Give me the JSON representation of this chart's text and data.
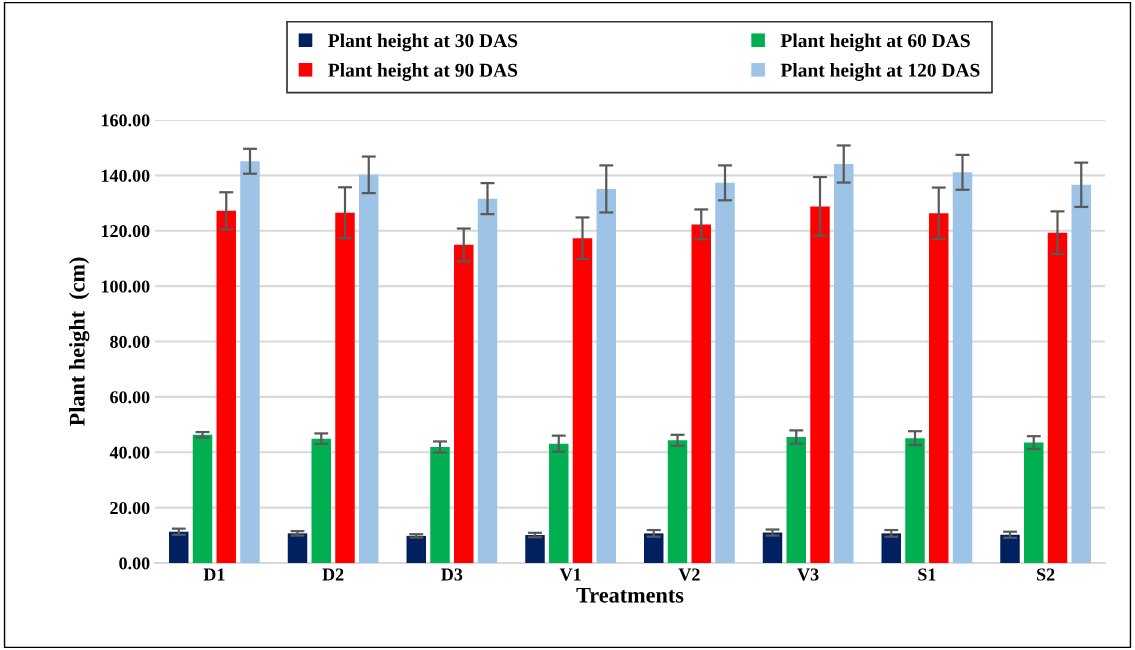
{
  "chart_data": {
    "type": "bar",
    "xlabel": "Treatments",
    "ylabel": "Plant height  (cm)",
    "categories": [
      "D1",
      "D2",
      "D3",
      "V1",
      "V2",
      "V3",
      "S1",
      "S2"
    ],
    "series": [
      {
        "name": "Plant height at 30 DAS",
        "color": "#002060",
        "values": [
          11.3,
          10.7,
          9.8,
          10.1,
          10.7,
          11.0,
          10.7,
          10.2
        ],
        "errors": [
          1.1,
          0.8,
          0.6,
          0.8,
          1.2,
          1.1,
          1.2,
          1.1
        ]
      },
      {
        "name": "Plant height at 60 DAS",
        "color": "#00b050",
        "values": [
          46.3,
          44.9,
          41.9,
          43.1,
          44.3,
          45.5,
          45.1,
          43.5
        ],
        "errors": [
          1.0,
          1.9,
          2.0,
          2.9,
          2.0,
          2.4,
          2.5,
          2.3
        ]
      },
      {
        "name": "Plant height at 90 DAS",
        "color": "#ff0000",
        "values": [
          127.2,
          126.5,
          114.9,
          117.3,
          122.3,
          128.8,
          126.3,
          119.3
        ],
        "errors": [
          6.7,
          9.2,
          5.9,
          7.5,
          5.4,
          10.6,
          9.3,
          7.7
        ]
      },
      {
        "name": "Plant height at 120 DAS",
        "color": "#9dc3e6",
        "values": [
          145.1,
          140.2,
          131.6,
          135.1,
          137.3,
          144.1,
          141.1,
          136.6
        ],
        "errors": [
          4.5,
          6.6,
          5.6,
          8.5,
          6.3,
          6.7,
          6.3,
          8.0
        ]
      }
    ],
    "ylim": [
      0,
      160
    ],
    "yticks": [
      {
        "value": 0,
        "label": "0.00"
      },
      {
        "value": 20,
        "label": "20.00"
      },
      {
        "value": 40,
        "label": "40.00"
      },
      {
        "value": 60,
        "label": "60.00"
      },
      {
        "value": 80,
        "label": "80.00"
      },
      {
        "value": 100,
        "label": "100.00"
      },
      {
        "value": 120,
        "label": "120.00"
      },
      {
        "value": 140,
        "label": "140.00"
      },
      {
        "value": 160,
        "label": "160.00"
      }
    ],
    "grid": "y",
    "legend": "top"
  }
}
